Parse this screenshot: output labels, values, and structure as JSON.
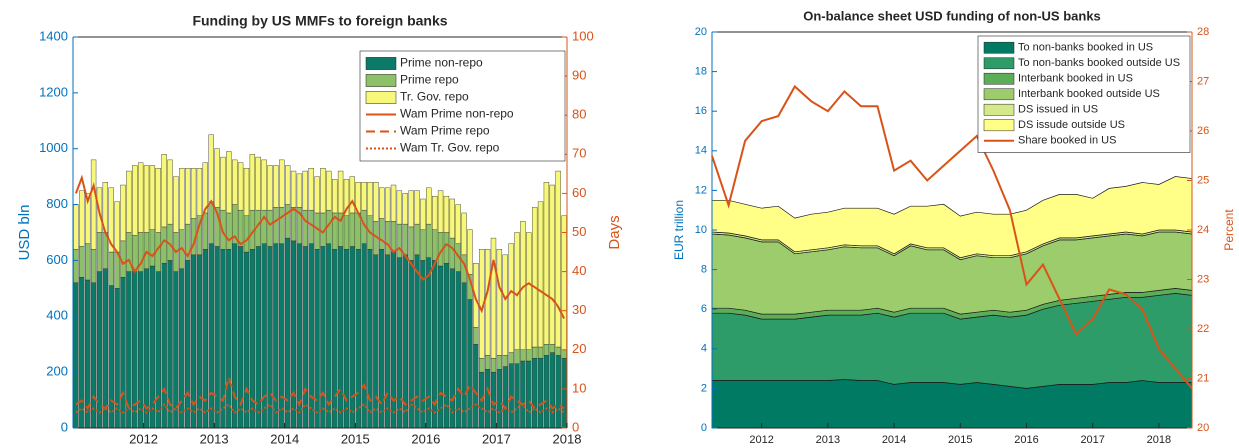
{
  "chart_data": [
    {
      "type": "bar",
      "stacked": true,
      "title": "Funding by US MMFs to foreign banks",
      "ylabel": "USD bln",
      "y2label": "Days",
      "legend": "upper right",
      "ylim": [
        0,
        1400
      ],
      "yticks": [
        0,
        200,
        400,
        600,
        800,
        1000,
        1200,
        1400
      ],
      "y2lim": [
        0,
        100
      ],
      "y2ticks": [
        0,
        10,
        20,
        30,
        40,
        50,
        60,
        70,
        80,
        90,
        100
      ],
      "categories": [
        null,
        null,
        null,
        null,
        null,
        null,
        null,
        null,
        null,
        null,
        null,
        "2012",
        null,
        null,
        null,
        null,
        null,
        null,
        null,
        null,
        null,
        null,
        null,
        "2013",
        null,
        null,
        null,
        null,
        null,
        null,
        null,
        null,
        null,
        null,
        null,
        "2014",
        null,
        null,
        null,
        null,
        null,
        null,
        null,
        null,
        null,
        null,
        null,
        "2015",
        null,
        null,
        null,
        null,
        null,
        null,
        null,
        null,
        null,
        null,
        null,
        "2016",
        null,
        null,
        null,
        null,
        null,
        null,
        null,
        null,
        null,
        null,
        null,
        "2017",
        null,
        null,
        null,
        null,
        null,
        null,
        null,
        null,
        null,
        null,
        null,
        "2018"
      ],
      "series": [
        {
          "name": "Prime non-repo",
          "color": "#0b7b68",
          "values": [
            520,
            540,
            530,
            520,
            560,
            570,
            510,
            500,
            540,
            560,
            560,
            560,
            570,
            580,
            560,
            590,
            600,
            560,
            570,
            600,
            620,
            620,
            640,
            660,
            650,
            640,
            640,
            660,
            650,
            630,
            640,
            650,
            660,
            650,
            660,
            660,
            680,
            670,
            660,
            650,
            660,
            640,
            650,
            660,
            640,
            650,
            640,
            650,
            640,
            660,
            640,
            620,
            640,
            620,
            630,
            610,
            620,
            600,
            620,
            600,
            610,
            600,
            580,
            590,
            570,
            560,
            520,
            460,
            300,
            200,
            210,
            200,
            210,
            220,
            230,
            230,
            240,
            240,
            250,
            250,
            260,
            270,
            260,
            250
          ]
        },
        {
          "name": "Prime repo",
          "color": "#8cc168",
          "values": [
            120,
            110,
            130,
            120,
            140,
            130,
            120,
            130,
            130,
            140,
            130,
            140,
            130,
            130,
            140,
            130,
            130,
            140,
            140,
            130,
            130,
            140,
            130,
            150,
            140,
            140,
            130,
            140,
            130,
            130,
            140,
            130,
            120,
            130,
            130,
            130,
            120,
            120,
            130,
            130,
            120,
            130,
            120,
            120,
            130,
            120,
            120,
            120,
            130,
            120,
            120,
            120,
            110,
            120,
            110,
            120,
            110,
            120,
            110,
            110,
            120,
            110,
            120,
            110,
            110,
            100,
            100,
            90,
            60,
            50,
            50,
            50,
            50,
            40,
            40,
            50,
            40,
            40,
            40,
            40,
            40,
            30,
            30,
            30
          ]
        },
        {
          "name": "Tr. Gov. repo",
          "color": "#f7f77a",
          "values": [
            160,
            200,
            180,
            320,
            160,
            180,
            230,
            180,
            200,
            220,
            250,
            250,
            240,
            230,
            230,
            260,
            230,
            200,
            220,
            200,
            180,
            170,
            180,
            240,
            210,
            190,
            220,
            160,
            170,
            170,
            200,
            190,
            180,
            160,
            150,
            170,
            140,
            130,
            120,
            140,
            150,
            130,
            160,
            140,
            120,
            150,
            130,
            130,
            110,
            100,
            120,
            140,
            110,
            120,
            130,
            120,
            110,
            130,
            120,
            110,
            130,
            120,
            150,
            130,
            140,
            140,
            150,
            160,
            230,
            390,
            380,
            430,
            380,
            360,
            390,
            420,
            460,
            420,
            500,
            520,
            580,
            570,
            630,
            480
          ]
        },
        {
          "name": "Wam Prime non-repo",
          "color": "#d95319",
          "axis": "y2",
          "dash": "solid",
          "values": [
            60,
            64,
            58,
            62,
            55,
            50,
            47,
            45,
            42,
            43,
            40,
            42,
            45,
            44,
            46,
            48,
            47,
            45,
            46,
            44,
            47,
            52,
            56,
            58,
            55,
            50,
            48,
            49,
            47,
            48,
            50,
            52,
            54,
            52,
            53,
            54,
            55,
            56,
            55,
            53,
            52,
            51,
            50,
            52,
            54,
            53,
            56,
            58,
            55,
            52,
            50,
            49,
            48,
            47,
            45,
            46,
            44,
            42,
            40,
            38,
            39,
            42,
            45,
            47,
            46,
            44,
            42,
            38,
            33,
            30,
            35,
            43,
            36,
            33,
            35,
            34,
            36,
            37,
            36,
            35,
            34,
            33,
            31,
            28
          ]
        },
        {
          "name": "Wam Prime repo",
          "color": "#d95319",
          "axis": "y2",
          "dash": "dashed",
          "values": [
            6,
            7,
            5,
            8,
            6,
            5,
            7,
            6,
            9,
            5,
            6,
            7,
            5,
            6,
            8,
            10,
            6,
            5,
            7,
            9,
            6,
            8,
            7,
            9,
            8,
            7,
            13,
            8,
            6,
            10,
            7,
            6,
            8,
            9,
            7,
            8,
            7,
            9,
            6,
            10,
            8,
            7,
            9,
            6,
            8,
            10,
            7,
            8,
            9,
            11,
            7,
            8,
            6,
            9,
            7,
            8,
            6,
            7,
            8,
            7,
            8,
            6,
            9,
            8,
            7,
            10,
            8,
            11,
            9,
            7,
            10,
            6,
            7,
            5,
            8,
            7,
            6,
            7,
            5,
            6,
            7,
            5,
            6,
            5
          ]
        },
        {
          "name": "Wam Tr. Gov. repo",
          "color": "#d95319",
          "axis": "y2",
          "dash": "dotted",
          "values": [
            4,
            5,
            4,
            5,
            4,
            5,
            4,
            5,
            4,
            5,
            4,
            5,
            4,
            5,
            4,
            6,
            4,
            5,
            4,
            5,
            4,
            5,
            4,
            5,
            4,
            5,
            6,
            4,
            5,
            4,
            5,
            4,
            5,
            6,
            4,
            5,
            4,
            5,
            4,
            6,
            5,
            4,
            5,
            4,
            5,
            4,
            5,
            4,
            5,
            6,
            4,
            5,
            4,
            5,
            4,
            5,
            4,
            6,
            5,
            4,
            5,
            4,
            5,
            6,
            4,
            5,
            4,
            5,
            6,
            5,
            4,
            5,
            4,
            5,
            4,
            5,
            6,
            4,
            5,
            4,
            5,
            4,
            5,
            4
          ]
        }
      ]
    },
    {
      "type": "area",
      "stacked": true,
      "title": "On-balance sheet USD funding of non-US banks",
      "ylabel": "EUR trillion",
      "y2label": "Percent",
      "legend": "upper right",
      "ylim": [
        0,
        20
      ],
      "yticks": [
        0,
        2,
        4,
        6,
        8,
        10,
        12,
        14,
        16,
        18,
        20
      ],
      "y2lim": [
        20,
        28
      ],
      "y2ticks": [
        20,
        21,
        22,
        23,
        24,
        25,
        26,
        27,
        28
      ],
      "categories": [
        null,
        null,
        null,
        "2012",
        null,
        null,
        null,
        "2013",
        null,
        null,
        null,
        "2014",
        null,
        null,
        null,
        "2015",
        null,
        null,
        null,
        "2016",
        null,
        null,
        null,
        "2017",
        null,
        null,
        null,
        "2018",
        null,
        null
      ],
      "series": [
        {
          "name": "To non-banks booked in US",
          "color": "#007a63",
          "values": [
            2.4,
            2.4,
            2.4,
            2.4,
            2.4,
            2.4,
            2.4,
            2.4,
            2.45,
            2.4,
            2.4,
            2.2,
            2.3,
            2.3,
            2.3,
            2.2,
            2.3,
            2.2,
            2.1,
            2.0,
            2.1,
            2.2,
            2.2,
            2.2,
            2.3,
            2.3,
            2.4,
            2.3,
            2.3,
            2.3
          ]
        },
        {
          "name": "To non-banks booked outside US",
          "color": "#2e9c68",
          "values": [
            3.4,
            3.4,
            3.3,
            3.1,
            3.1,
            3.1,
            3.2,
            3.3,
            3.25,
            3.3,
            3.4,
            3.4,
            3.5,
            3.5,
            3.5,
            3.3,
            3.3,
            3.5,
            3.5,
            3.7,
            3.9,
            4.0,
            4.1,
            4.2,
            4.2,
            4.3,
            4.2,
            4.4,
            4.5,
            4.4
          ]
        },
        {
          "name": "Interbank booked in US",
          "color": "#5cad58",
          "values": [
            0.25,
            0.25,
            0.25,
            0.25,
            0.25,
            0.25,
            0.25,
            0.25,
            0.25,
            0.25,
            0.25,
            0.25,
            0.25,
            0.25,
            0.25,
            0.25,
            0.25,
            0.25,
            0.25,
            0.25,
            0.25,
            0.25,
            0.25,
            0.25,
            0.25,
            0.25,
            0.25,
            0.25,
            0.25,
            0.25
          ]
        },
        {
          "name": "Interbank booked outside US",
          "color": "#9ccc6c",
          "values": [
            3.75,
            3.7,
            3.65,
            3.65,
            3.65,
            3.05,
            3.05,
            3.05,
            3.2,
            3.15,
            3.05,
            2.85,
            3.15,
            2.95,
            2.95,
            2.75,
            2.85,
            2.65,
            2.75,
            2.85,
            2.95,
            3.05,
            2.95,
            2.95,
            2.95,
            2.95,
            2.85,
            2.95,
            2.85,
            2.85
          ]
        },
        {
          "name": "DS issued in US",
          "color": "#d4ea8a",
          "values": [
            0.1,
            0.1,
            0.1,
            0.1,
            0.1,
            0.1,
            0.1,
            0.1,
            0.1,
            0.1,
            0.1,
            0.1,
            0.1,
            0.1,
            0.1,
            0.1,
            0.1,
            0.1,
            0.1,
            0.1,
            0.1,
            0.1,
            0.1,
            0.1,
            0.1,
            0.1,
            0.1,
            0.1,
            0.1,
            0.1
          ]
        },
        {
          "name": "DS issude outside US",
          "color": "#ffff88",
          "values": [
            1.6,
            1.65,
            1.6,
            1.6,
            1.7,
            1.7,
            1.8,
            1.8,
            1.85,
            1.9,
            1.9,
            2.0,
            1.9,
            2.1,
            2.2,
            2.1,
            2.1,
            2.1,
            2.1,
            2.1,
            2.2,
            2.2,
            2.2,
            1.9,
            2.3,
            2.3,
            2.6,
            2.3,
            2.7,
            2.7
          ]
        },
        {
          "name": "Share booked in US",
          "color": "#d95319",
          "axis": "y2",
          "dash": "solid",
          "values": [
            25.5,
            24.5,
            25.8,
            26.2,
            26.3,
            26.9,
            26.6,
            26.4,
            26.8,
            26.5,
            26.5,
            25.2,
            25.4,
            25.0,
            25.3,
            25.6,
            25.9,
            25.2,
            24.4,
            22.9,
            23.3,
            22.6,
            21.9,
            22.2,
            22.8,
            22.7,
            22.4,
            21.6,
            21.2,
            20.8
          ]
        }
      ]
    }
  ]
}
